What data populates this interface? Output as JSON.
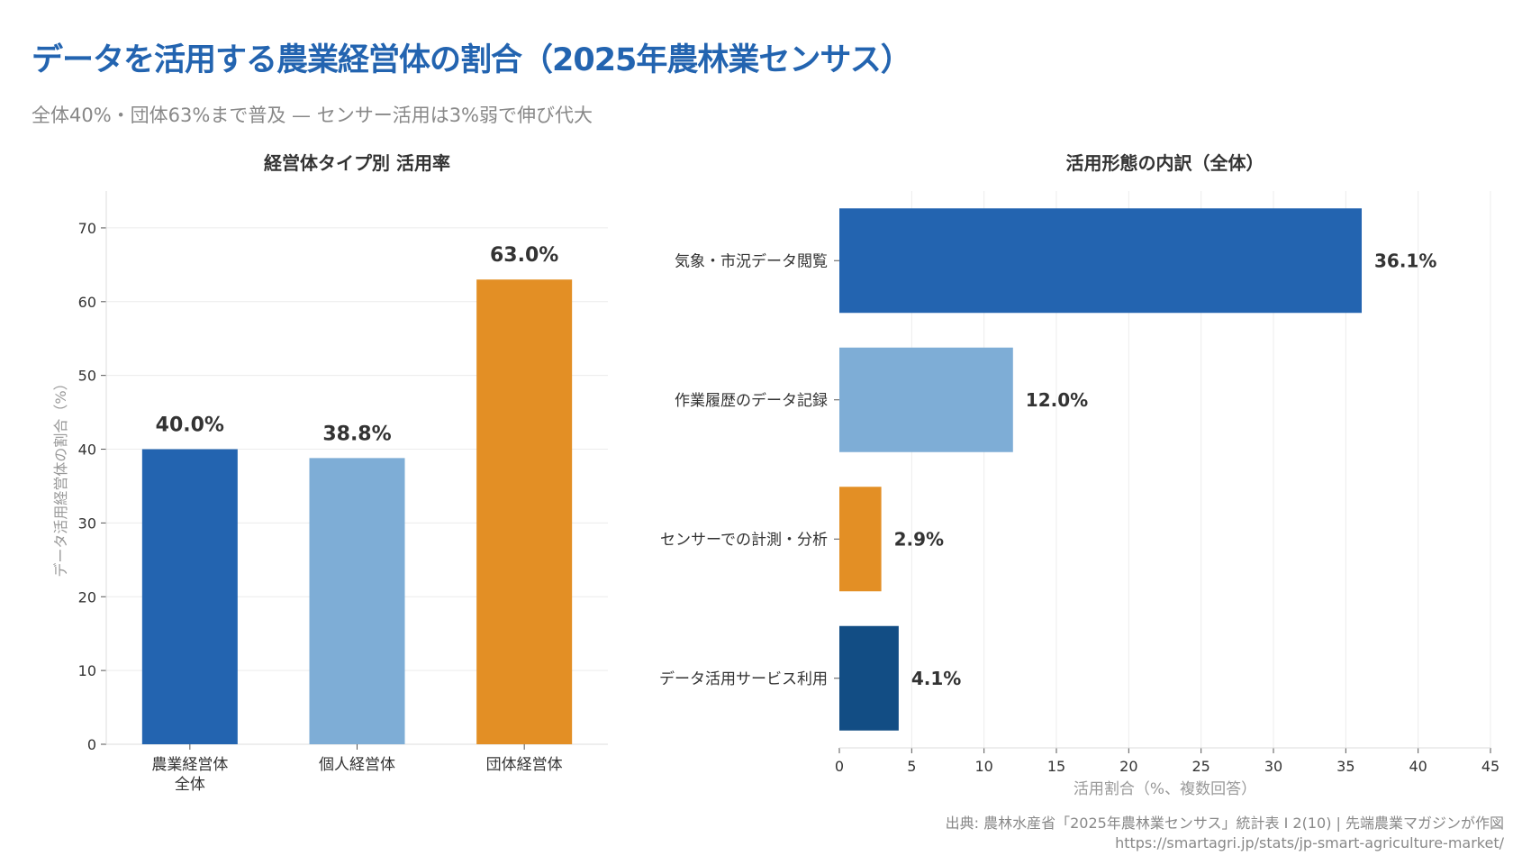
{
  "header": {
    "title": "データを活用する農業経営体の割合（2025年農林業センサス）",
    "subtitle": "全体40%・団体63%まで普及 — センサー活用は3%弱で伸び代大"
  },
  "chart_data": [
    {
      "type": "bar",
      "orientation": "vertical",
      "title": "経営体タイプ別 活用率",
      "ylabel": "データ活用経営体の割合（%）",
      "xlabel": "",
      "categories": [
        "農業経営体\n全体",
        "個人経営体",
        "団体経営体"
      ],
      "values": [
        40.0,
        38.8,
        63.0
      ],
      "data_labels": [
        "40.0%",
        "38.8%",
        "63.0%"
      ],
      "colors": [
        "#2364b0",
        "#7eadd6",
        "#e38f25"
      ],
      "ylim": [
        0,
        75
      ],
      "yticks": [
        0,
        10,
        20,
        30,
        40,
        50,
        60,
        70
      ],
      "grid": true
    },
    {
      "type": "bar",
      "orientation": "horizontal",
      "title": "活用形態の内訳（全体）",
      "xlabel": "活用割合（%、複数回答）",
      "ylabel": "",
      "categories": [
        "気象・市況データ閲覧",
        "作業履歴のデータ記録",
        "センサーでの計測・分析",
        "データ活用サービス利用"
      ],
      "values": [
        36.1,
        12.0,
        2.9,
        4.1
      ],
      "data_labels": [
        "36.1%",
        "12.0%",
        "2.9%",
        "4.1%"
      ],
      "colors": [
        "#2364b0",
        "#7eadd6",
        "#e38f25",
        "#124d84"
      ],
      "xlim": [
        0,
        45
      ],
      "xticks": [
        0,
        5,
        10,
        15,
        20,
        25,
        30,
        35,
        40,
        45
      ],
      "grid": true
    }
  ],
  "footer": {
    "source": "出典: 農林水産省「2025年農林業センサス」統計表 I 2(10) | 先端農業マガジンが作図",
    "url": "https://smartagri.jp/stats/jp-smart-agriculture-market/"
  }
}
